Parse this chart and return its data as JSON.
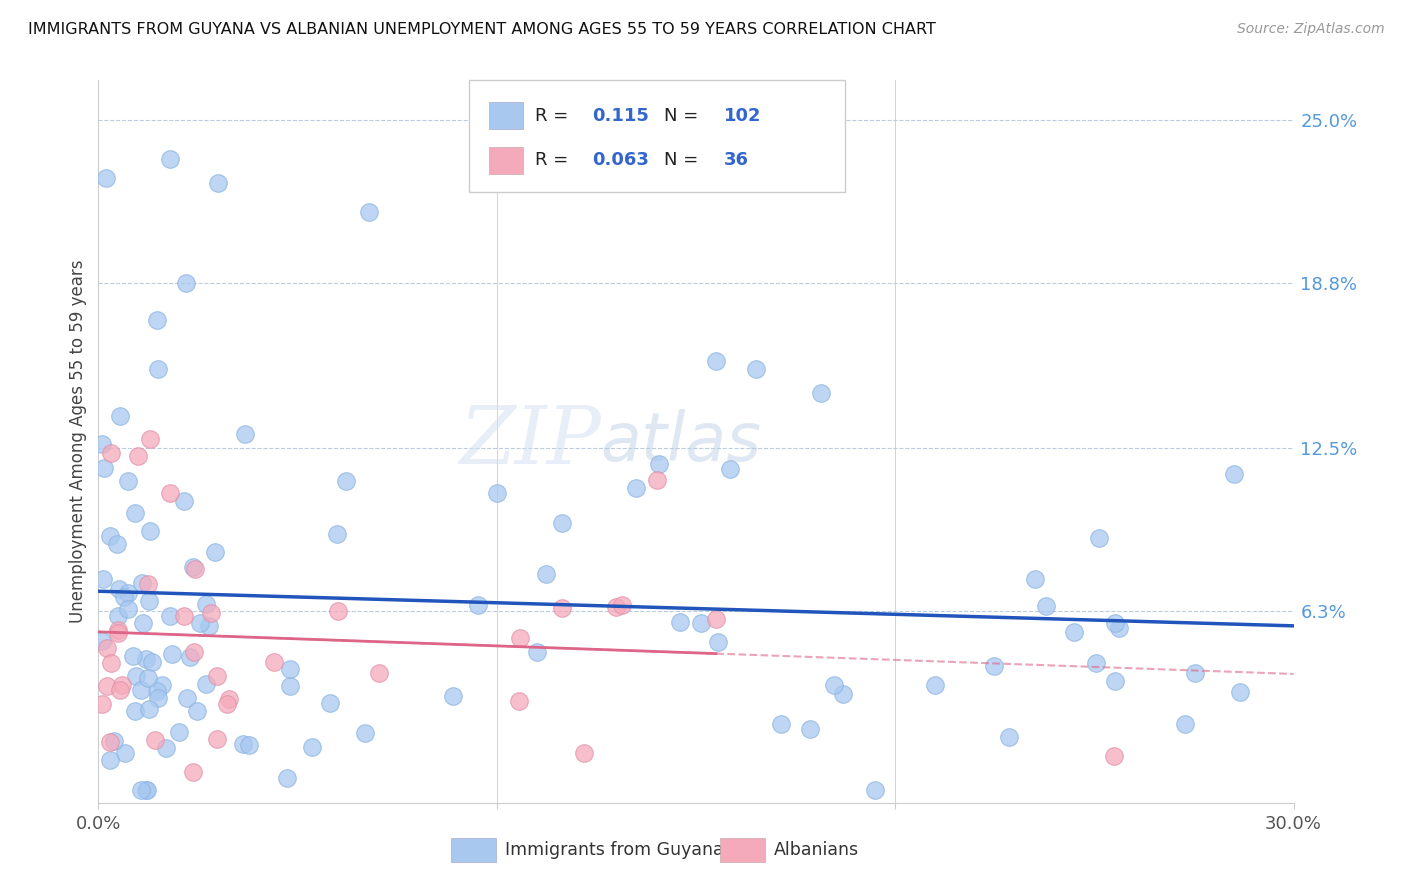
{
  "title": "IMMIGRANTS FROM GUYANA VS ALBANIAN UNEMPLOYMENT AMONG AGES 55 TO 59 YEARS CORRELATION CHART",
  "source": "Source: ZipAtlas.com",
  "ylabel": "Unemployment Among Ages 55 to 59 years",
  "xlim": [
    0.0,
    0.3
  ],
  "ylim": [
    -0.01,
    0.265
  ],
  "right_ytick_labels": [
    "25.0%",
    "18.8%",
    "12.5%",
    "6.3%"
  ],
  "right_ytick_positions": [
    0.25,
    0.188,
    0.125,
    0.063
  ],
  "hline_positions": [
    0.25,
    0.188,
    0.125,
    0.063
  ],
  "blue_R": 0.115,
  "blue_N": 102,
  "pink_R": 0.063,
  "pink_N": 36,
  "legend_label_blue": "Immigrants from Guyana",
  "legend_label_pink": "Albanians",
  "blue_color": "#A8C8F0",
  "pink_color": "#F5AABB",
  "trend_blue_color": "#2255BB",
  "trend_pink_color": "#DD6688",
  "watermark_zip": "ZIP",
  "watermark_atlas": "atlas"
}
